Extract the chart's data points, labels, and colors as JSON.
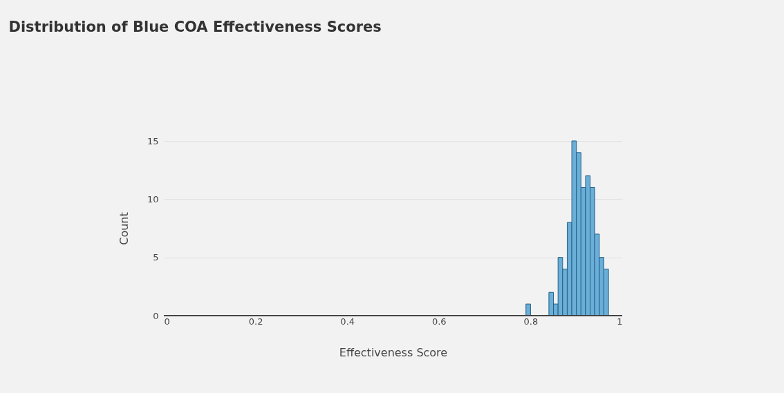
{
  "chart_data": {
    "type": "histogram",
    "title": "Distribution of Blue COA Effectiveness Scores",
    "xlabel": "Effectiveness Score",
    "ylabel": "Count",
    "bins": [
      0.79,
      0.8,
      0.81,
      0.82,
      0.83,
      0.84,
      0.85,
      0.86,
      0.87,
      0.88,
      0.89,
      0.9,
      0.91,
      0.92,
      0.93,
      0.94,
      0.95,
      0.96,
      0.97
    ],
    "values": [
      1,
      0,
      0,
      0,
      0,
      2,
      1,
      5,
      4,
      8,
      15,
      14,
      11,
      12,
      11,
      7,
      5,
      4
    ],
    "color": "#6baed6",
    "xlim": [
      0,
      1
    ],
    "xticks": [
      0,
      0.2,
      0.4,
      0.6,
      0.8,
      1
    ],
    "ylim": [
      0,
      15
    ],
    "yticks": [
      0,
      5,
      10,
      15
    ],
    "grid": "y"
  }
}
